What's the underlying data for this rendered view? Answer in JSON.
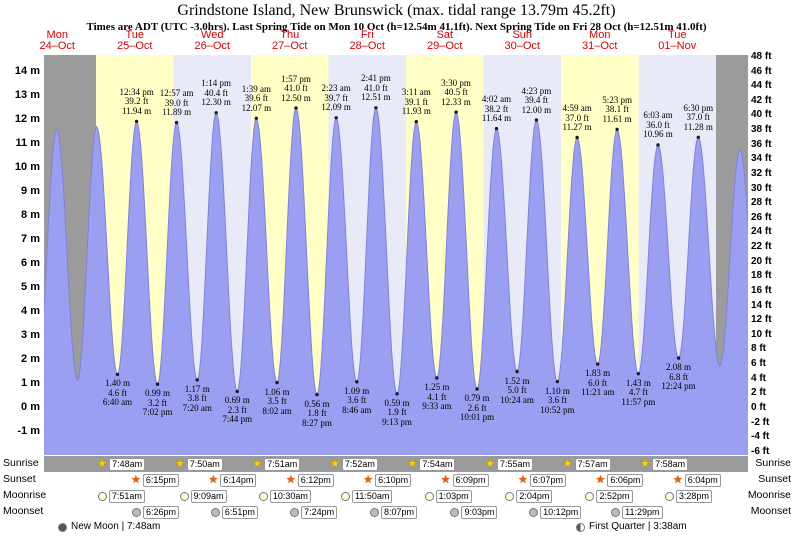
{
  "chart_data": {
    "type": "area",
    "title": "Grindstone Island, New Brunswick (max. tidal range 13.79m 45.2ft)",
    "subtitle": "Times are ADT (UTC -3.0hrs). Last Spring Tide on Mon 10 Oct (h=12.54m 41.1ft). Next Spring Tide on Fri 28 Oct (h=12.51m 41.0ft)",
    "days": [
      {
        "name": "Mon",
        "date": "24–Oct"
      },
      {
        "name": "Tue",
        "date": "25–Oct"
      },
      {
        "name": "Wed",
        "date": "26–Oct"
      },
      {
        "name": "Thu",
        "date": "27–Oct"
      },
      {
        "name": "Fri",
        "date": "28–Oct"
      },
      {
        "name": "Sat",
        "date": "29–Oct"
      },
      {
        "name": "Sun",
        "date": "30–Oct"
      },
      {
        "name": "Mon",
        "date": "31–Oct"
      },
      {
        "name": "Tue",
        "date": "01–Nov"
      }
    ],
    "y_axis_left": {
      "unit": "m",
      "values": [
        14,
        13,
        12,
        11,
        10,
        9,
        8,
        7,
        6,
        5,
        4,
        3,
        2,
        1,
        0,
        -1
      ],
      "labels": [
        "14 m",
        "13 m",
        "12 m",
        "11 m",
        "10 m",
        "9 m",
        "8 m",
        "7 m",
        "6 m",
        "5 m",
        "4 m",
        "3 m",
        "2 m",
        "1 m",
        "0 m",
        "-1 m"
      ]
    },
    "y_axis_right": {
      "unit": "ft",
      "values": [
        48,
        46,
        44,
        42,
        40,
        38,
        36,
        34,
        32,
        30,
        28,
        26,
        24,
        22,
        20,
        18,
        16,
        14,
        12,
        10,
        8,
        6,
        4,
        2,
        0,
        -2,
        -4,
        -6
      ],
      "labels": [
        "48 ft",
        "46 ft",
        "44 ft",
        "42 ft",
        "40 ft",
        "38 ft",
        "36 ft",
        "34 ft",
        "32 ft",
        "30 ft",
        "28 ft",
        "26 ft",
        "24 ft",
        "22 ft",
        "20 ft",
        "18 ft",
        "16 ft",
        "14 ft",
        "12 ft",
        "10 ft",
        "8 ft",
        "6 ft",
        "4 ft",
        "2 ft",
        "0 ft",
        "-2 ft",
        "-4 ft",
        "-6 ft"
      ]
    },
    "y_range_m": [
      -1.96,
      14.71
    ],
    "extremes": [
      {
        "kind": "low",
        "t": -0.76,
        "m": 1.3,
        "labeled": false
      },
      {
        "kind": "high",
        "t": -0.507,
        "m": 11.6,
        "labeled": false
      },
      {
        "kind": "low",
        "t": -0.238,
        "m": 1.15,
        "labeled": false
      },
      {
        "kind": "high",
        "t": 0.008,
        "m": 11.72,
        "labeled": false
      },
      {
        "kind": "low",
        "t": 0.278,
        "m": 1.4,
        "labeled": true,
        "time": "6:40 am",
        "ft": "4.6 ft",
        "meters": "1.40 m"
      },
      {
        "kind": "high",
        "t": 0.524,
        "m": 11.94,
        "labeled": true,
        "time": "12:34 pm",
        "ft": "39.2 ft",
        "meters": "11.94 m"
      },
      {
        "kind": "low",
        "t": 0.793,
        "m": 0.99,
        "labeled": true,
        "time": "7:02 pm",
        "ft": "3.2 ft",
        "meters": "0.99 m"
      },
      {
        "kind": "high",
        "t": 1.04,
        "m": 11.89,
        "labeled": true,
        "time": "12:57 am",
        "ft": "39.0 ft",
        "meters": "11.89 m"
      },
      {
        "kind": "low",
        "t": 1.306,
        "m": 1.17,
        "labeled": true,
        "time": "7:20 am",
        "ft": "3.8 ft",
        "meters": "1.17 m"
      },
      {
        "kind": "high",
        "t": 1.551,
        "m": 12.3,
        "labeled": true,
        "time": "1:14 pm",
        "ft": "40.4 ft",
        "meters": "12.30 m"
      },
      {
        "kind": "low",
        "t": 1.822,
        "m": 0.69,
        "labeled": true,
        "time": "7:44 pm",
        "ft": "2.3 ft",
        "meters": "0.69 m"
      },
      {
        "kind": "high",
        "t": 2.069,
        "m": 12.07,
        "labeled": true,
        "time": "1:39 am",
        "ft": "39.6 ft",
        "meters": "12.07 m"
      },
      {
        "kind": "low",
        "t": 2.335,
        "m": 1.06,
        "labeled": true,
        "time": "8:02 am",
        "ft": "3.5 ft",
        "meters": "1.06 m"
      },
      {
        "kind": "high",
        "t": 2.581,
        "m": 12.5,
        "labeled": true,
        "time": "1:57 pm",
        "ft": "41.0 ft",
        "meters": "12.50 m"
      },
      {
        "kind": "low",
        "t": 2.852,
        "m": 0.56,
        "labeled": true,
        "time": "8:27 pm",
        "ft": "1.8 ft",
        "meters": "0.56 m"
      },
      {
        "kind": "high",
        "t": 3.099,
        "m": 12.09,
        "labeled": true,
        "time": "2:23 am",
        "ft": "39.7 ft",
        "meters": "12.09 m"
      },
      {
        "kind": "low",
        "t": 3.365,
        "m": 1.09,
        "labeled": true,
        "time": "8:46 am",
        "ft": "3.6 ft",
        "meters": "1.09 m"
      },
      {
        "kind": "high",
        "t": 3.612,
        "m": 12.51,
        "labeled": true,
        "time": "2:41 pm",
        "ft": "41.0 ft",
        "meters": "12.51 m"
      },
      {
        "kind": "low",
        "t": 3.884,
        "m": 0.59,
        "labeled": true,
        "time": "9:13 pm",
        "ft": "1.9 ft",
        "meters": "0.59 m"
      },
      {
        "kind": "high",
        "t": 4.133,
        "m": 11.93,
        "labeled": true,
        "time": "3:11 am",
        "ft": "39.1 ft",
        "meters": "11.93 m"
      },
      {
        "kind": "low",
        "t": 4.398,
        "m": 1.25,
        "labeled": true,
        "time": "9:33 am",
        "ft": "4.1 ft",
        "meters": "1.25 m"
      },
      {
        "kind": "high",
        "t": 4.646,
        "m": 12.33,
        "labeled": true,
        "time": "3:30 pm",
        "ft": "40.5 ft",
        "meters": "12.33 m"
      },
      {
        "kind": "low",
        "t": 4.917,
        "m": 0.79,
        "labeled": true,
        "time": "10:01 pm",
        "ft": "2.6 ft",
        "meters": "0.79 m"
      },
      {
        "kind": "high",
        "t": 5.168,
        "m": 11.64,
        "labeled": true,
        "time": "4:02 am",
        "ft": "38.2 ft",
        "meters": "11.64 m"
      },
      {
        "kind": "low",
        "t": 5.433,
        "m": 1.52,
        "labeled": true,
        "time": "10:24 am",
        "ft": "5.0 ft",
        "meters": "1.52 m"
      },
      {
        "kind": "high",
        "t": 5.683,
        "m": 12.0,
        "labeled": true,
        "time": "4:23 pm",
        "ft": "39.4 ft",
        "meters": "12.00 m"
      },
      {
        "kind": "low",
        "t": 5.953,
        "m": 1.1,
        "labeled": true,
        "time": "10:52 pm",
        "ft": "3.6 ft",
        "meters": "1.10 m"
      },
      {
        "kind": "high",
        "t": 6.208,
        "m": 11.27,
        "labeled": true,
        "time": "4:59 am",
        "ft": "37.0 ft",
        "meters": "11.27 m"
      },
      {
        "kind": "low",
        "t": 6.473,
        "m": 1.83,
        "labeled": true,
        "time": "11:21 am",
        "ft": "6.0 ft",
        "meters": "1.83 m"
      },
      {
        "kind": "high",
        "t": 6.724,
        "m": 11.61,
        "labeled": true,
        "time": "5:23 pm",
        "ft": "38.1 ft",
        "meters": "11.61 m"
      },
      {
        "kind": "low",
        "t": 6.998,
        "m": 1.43,
        "labeled": true,
        "time": "11:57 pm",
        "ft": "4.7 ft",
        "meters": "1.43 m"
      },
      {
        "kind": "high",
        "t": 7.252,
        "m": 10.96,
        "labeled": true,
        "time": "6:03 am",
        "ft": "36.0 ft",
        "meters": "10.96 m"
      },
      {
        "kind": "low",
        "t": 7.517,
        "m": 2.08,
        "labeled": true,
        "time": "12:24 pm",
        "ft": "6.8 ft",
        "meters": "2.08 m"
      },
      {
        "kind": "high",
        "t": 7.771,
        "m": 11.28,
        "labeled": true,
        "time": "6:30 pm",
        "ft": "37.0 ft",
        "meters": "11.28 m"
      },
      {
        "kind": "low",
        "t": 8.049,
        "m": 1.75,
        "labeled": false
      },
      {
        "kind": "high",
        "t": 8.309,
        "m": 10.75,
        "labeled": false
      },
      {
        "kind": "low",
        "t": 8.566,
        "m": 2.2,
        "labeled": false
      }
    ]
  },
  "astro": {
    "rows": [
      {
        "id": "sunrise",
        "label": "Sunrise",
        "icon": "sunrise-star",
        "items": [
          {
            "day": 0,
            "time": "7:48am"
          },
          {
            "day": 1,
            "time": "7:50am"
          },
          {
            "day": 2,
            "time": "7:51am"
          },
          {
            "day": 3,
            "time": "7:52am"
          },
          {
            "day": 4,
            "time": "7:54am"
          },
          {
            "day": 5,
            "time": "7:55am"
          },
          {
            "day": 6,
            "time": "7:57am"
          },
          {
            "day": 7,
            "time": "7:58am"
          }
        ]
      },
      {
        "id": "sunset",
        "label": "Sunset",
        "icon": "sunset-star",
        "items": [
          {
            "day": 0,
            "time": "6:15pm"
          },
          {
            "day": 1,
            "time": "6:14pm"
          },
          {
            "day": 2,
            "time": "6:12pm"
          },
          {
            "day": 3,
            "time": "6:10pm"
          },
          {
            "day": 4,
            "time": "6:09pm"
          },
          {
            "day": 5,
            "time": "6:07pm"
          },
          {
            "day": 6,
            "time": "6:06pm"
          },
          {
            "day": 7,
            "time": "6:04pm"
          }
        ]
      },
      {
        "id": "moonrise",
        "label": "Moonrise",
        "icon": "moonrise-disc",
        "items": [
          {
            "day": 0,
            "time": "7:51am"
          },
          {
            "day": 1,
            "time": "9:09am"
          },
          {
            "day": 2,
            "time": "10:30am"
          },
          {
            "day": 3,
            "time": "11:50am"
          },
          {
            "day": 4,
            "time": "1:03pm"
          },
          {
            "day": 5,
            "time": "2:04pm"
          },
          {
            "day": 6,
            "time": "2:52pm"
          },
          {
            "day": 7,
            "time": "3:28pm"
          }
        ]
      },
      {
        "id": "moonset",
        "label": "Moonset",
        "icon": "moonset-disc",
        "items": [
          {
            "day": 0,
            "time": "6:26pm"
          },
          {
            "day": 1,
            "time": "6:51pm"
          },
          {
            "day": 2,
            "time": "7:24pm"
          },
          {
            "day": 3,
            "time": "8:07pm"
          },
          {
            "day": 4,
            "time": "9:03pm"
          },
          {
            "day": 5,
            "time": "10:12pm"
          },
          {
            "day": 6,
            "time": "11:29pm"
          }
        ]
      }
    ],
    "events": [
      {
        "id": "new-moon",
        "text": "New Moon | 7:48am"
      },
      {
        "id": "first-quarter",
        "text": "First Quarter | 3:38am"
      }
    ]
  },
  "colors": {
    "day_label_red": "#e10000",
    "band_gray": "#9b9b9b",
    "band_yellow": "#ffffc6",
    "band_pale": "#e9eaf7",
    "tide_fill": "#9b9ff1",
    "tide_stroke": "#7e82dd",
    "extreme_dot": "#1b1b1b",
    "sunrise_star": "#ffd400",
    "sunset_star": "#f2590a",
    "moonrise_disc": "#ffffd6",
    "moonset_disc": "#bbbbbb"
  }
}
